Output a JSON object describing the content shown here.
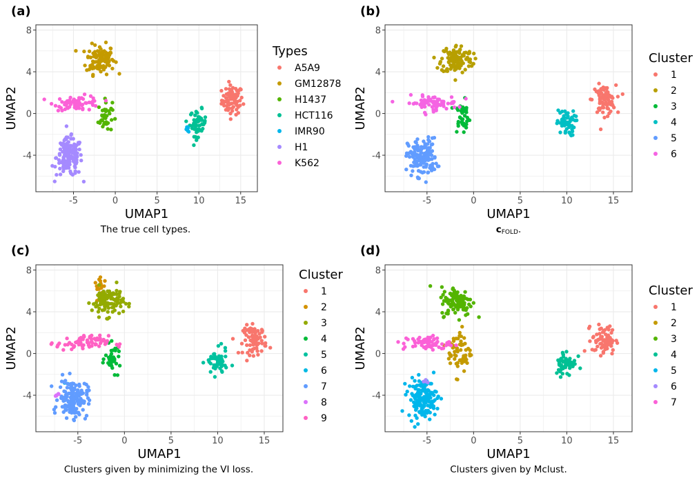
{
  "colors": {
    "c1": "#F8766D",
    "c2": "#C49A00",
    "c3": "#53B400",
    "c4": "#00C094",
    "c5": "#00B6EB",
    "c6": "#A58AFF",
    "c7": "#FB61D7",
    "k1": "#F8766D",
    "k2": "#D39200",
    "k3": "#93AA00",
    "k4": "#00BA38",
    "k5": "#00C19F",
    "k6": "#00B9E3",
    "k7": "#619CFF",
    "k8": "#DB72FB",
    "k9": "#FF61C3",
    "m1": "#F8766D",
    "m2": "#C49A00",
    "m3": "#53B400",
    "m4": "#00C094",
    "m5": "#00B6EB",
    "m6": "#A58AFF",
    "m7": "#FB61D7",
    "b1": "#F8766D",
    "b2": "#B79F00",
    "b3": "#00BA38",
    "b4": "#00BFC4",
    "b5": "#619CFF",
    "b6": "#F564E3",
    "grid": "#ebebeb",
    "border": "#333333"
  },
  "chart_data": [
    {
      "type": "scatter",
      "panel_label": "(a)",
      "caption": "The true cell types.",
      "xlabel": "UMAP1",
      "ylabel": "UMAP2",
      "xlim": [
        -9.5,
        17
      ],
      "ylim": [
        -7.5,
        8.5
      ],
      "xticks": [
        -5,
        0,
        5,
        10,
        15
      ],
      "yticks": [
        -4,
        0,
        4,
        8
      ],
      "grid": true,
      "legend": {
        "title": "Types",
        "position": "right",
        "entries": [
          {
            "label": "A5A9",
            "color_key": "c1"
          },
          {
            "label": "GM12878",
            "color_key": "c2"
          },
          {
            "label": "H1437",
            "color_key": "c3"
          },
          {
            "label": "HCT116",
            "color_key": "c4"
          },
          {
            "label": "IMR90",
            "color_key": "c5"
          },
          {
            "label": "H1",
            "color_key": "c6"
          },
          {
            "label": "K562",
            "color_key": "c7"
          }
        ]
      },
      "series": [
        {
          "name": "A5A9",
          "color_key": "c1",
          "cx": 14,
          "cy": 1.3,
          "sx": 0.9,
          "sy": 1.0,
          "n": 80
        },
        {
          "name": "GM12878",
          "color_key": "c2",
          "cx": -1.8,
          "cy": 5.2,
          "sx": 1.2,
          "sy": 1.0,
          "n": 120
        },
        {
          "name": "H1437",
          "color_key": "c3",
          "cx": -1.2,
          "cy": -0.3,
          "sx": 0.6,
          "sy": 1.1,
          "n": 40
        },
        {
          "name": "HCT116",
          "color_key": "c4",
          "cx": 9.9,
          "cy": -0.9,
          "sx": 0.7,
          "sy": 0.9,
          "n": 50
        },
        {
          "name": "IMR90",
          "color_key": "c5",
          "cx": 8.7,
          "cy": -1.5,
          "sx": 0.2,
          "sy": 0.2,
          "n": 6
        },
        {
          "name": "H1",
          "color_key": "c6",
          "cx": -5.5,
          "cy": -4.2,
          "sx": 1.1,
          "sy": 1.3,
          "n": 150
        },
        {
          "name": "K562",
          "color_key": "c7",
          "cx": -4.5,
          "cy": 1.0,
          "sx": 2.0,
          "sy": 0.5,
          "n": 70
        }
      ]
    },
    {
      "type": "scatter",
      "panel_label": "(b)",
      "caption_main": "c",
      "caption_sub": "FOLD",
      "caption_end": ".",
      "xlabel": "UMAP1",
      "ylabel": "UMAP2",
      "xlim": [
        -9.5,
        17
      ],
      "ylim": [
        -7.5,
        8.5
      ],
      "xticks": [
        -5,
        0,
        5,
        10,
        15
      ],
      "yticks": [
        -4,
        0,
        4,
        8
      ],
      "grid": true,
      "legend": {
        "title": "Cluster",
        "position": "right",
        "entries": [
          {
            "label": "1",
            "color_key": "b1"
          },
          {
            "label": "2",
            "color_key": "b2"
          },
          {
            "label": "3",
            "color_key": "b3"
          },
          {
            "label": "4",
            "color_key": "b4"
          },
          {
            "label": "5",
            "color_key": "b5"
          },
          {
            "label": "6",
            "color_key": "b6"
          }
        ]
      },
      "series": [
        {
          "name": "1",
          "color_key": "b1",
          "cx": 14,
          "cy": 1.3,
          "sx": 0.9,
          "sy": 1.0,
          "n": 80
        },
        {
          "name": "2",
          "color_key": "b2",
          "cx": -1.8,
          "cy": 5.2,
          "sx": 1.2,
          "sy": 1.0,
          "n": 120
        },
        {
          "name": "3",
          "color_key": "b3",
          "cx": -1.2,
          "cy": -0.3,
          "sx": 0.6,
          "sy": 1.1,
          "n": 40
        },
        {
          "name": "4",
          "color_key": "b4",
          "cx": 9.9,
          "cy": -0.9,
          "sx": 0.7,
          "sy": 0.9,
          "n": 55
        },
        {
          "name": "5",
          "color_key": "b5",
          "cx": -5.5,
          "cy": -4.2,
          "sx": 1.1,
          "sy": 1.3,
          "n": 150
        },
        {
          "name": "6",
          "color_key": "b6",
          "cx": -4.5,
          "cy": 1.0,
          "sx": 2.0,
          "sy": 0.5,
          "n": 70
        }
      ]
    },
    {
      "type": "scatter",
      "panel_label": "(c)",
      "caption": "Clusters given by minimizing the VI loss.",
      "xlabel": "UMAP1",
      "ylabel": "UMAP2",
      "xlim": [
        -9.5,
        17
      ],
      "ylim": [
        -7.5,
        8.5
      ],
      "xticks": [
        -5,
        0,
        5,
        10,
        15
      ],
      "yticks": [
        -4,
        0,
        4,
        8
      ],
      "grid": true,
      "legend": {
        "title": "Cluster",
        "position": "right",
        "entries": [
          {
            "label": "1",
            "color_key": "k1"
          },
          {
            "label": "2",
            "color_key": "k2"
          },
          {
            "label": "3",
            "color_key": "k3"
          },
          {
            "label": "4",
            "color_key": "k4"
          },
          {
            "label": "5",
            "color_key": "k5"
          },
          {
            "label": "6",
            "color_key": "k6"
          },
          {
            "label": "7",
            "color_key": "k7"
          },
          {
            "label": "8",
            "color_key": "k8"
          },
          {
            "label": "9",
            "color_key": "k9"
          }
        ]
      },
      "series": [
        {
          "name": "1",
          "color_key": "k1",
          "cx": 14,
          "cy": 1.3,
          "sx": 0.9,
          "sy": 1.0,
          "n": 80
        },
        {
          "name": "2",
          "color_key": "k2",
          "cx": -2.5,
          "cy": 6.3,
          "sx": 0.5,
          "sy": 0.6,
          "n": 20
        },
        {
          "name": "3",
          "color_key": "k3",
          "cx": -1.8,
          "cy": 5.0,
          "sx": 1.2,
          "sy": 1.0,
          "n": 110
        },
        {
          "name": "4",
          "color_key": "k4",
          "cx": -1.2,
          "cy": -0.5,
          "sx": 0.6,
          "sy": 0.9,
          "n": 40
        },
        {
          "name": "5",
          "color_key": "k5",
          "cx": 9.9,
          "cy": -0.9,
          "sx": 0.8,
          "sy": 0.9,
          "n": 55
        },
        {
          "name": "6",
          "color_key": "k6",
          "cx": -6.4,
          "cy": -3.0,
          "sx": 0.3,
          "sy": 0.3,
          "n": 3
        },
        {
          "name": "7",
          "color_key": "k7",
          "cx": -5.5,
          "cy": -4.3,
          "sx": 1.1,
          "sy": 1.3,
          "n": 150
        },
        {
          "name": "8",
          "color_key": "k8",
          "cx": -7.5,
          "cy": -4.2,
          "sx": 0.3,
          "sy": 0.4,
          "n": 5
        },
        {
          "name": "9",
          "color_key": "k9",
          "cx": -4.5,
          "cy": 1.0,
          "sx": 2.0,
          "sy": 0.5,
          "n": 70
        }
      ]
    },
    {
      "type": "scatter",
      "panel_label": "(d)",
      "caption": "Clusters given by Mclust.",
      "xlabel": "UMAP1",
      "ylabel": "UMAP2",
      "xlim": [
        -9.5,
        17
      ],
      "ylim": [
        -7.5,
        8.5
      ],
      "xticks": [
        -5,
        0,
        5,
        10,
        15
      ],
      "yticks": [
        -4,
        0,
        4,
        8
      ],
      "grid": true,
      "legend": {
        "title": "Cluster",
        "position": "right",
        "entries": [
          {
            "label": "1",
            "color_key": "m1"
          },
          {
            "label": "2",
            "color_key": "m2"
          },
          {
            "label": "3",
            "color_key": "m3"
          },
          {
            "label": "4",
            "color_key": "m4"
          },
          {
            "label": "5",
            "color_key": "m5"
          },
          {
            "label": "6",
            "color_key": "m6"
          },
          {
            "label": "7",
            "color_key": "m7"
          }
        ]
      },
      "series": [
        {
          "name": "1",
          "color_key": "m1",
          "cx": 14,
          "cy": 1.3,
          "sx": 0.9,
          "sy": 1.0,
          "n": 80
        },
        {
          "name": "2",
          "color_key": "m2",
          "cx": -1.5,
          "cy": 0.2,
          "sx": 0.9,
          "sy": 1.6,
          "n": 60
        },
        {
          "name": "3",
          "color_key": "m3",
          "cx": -1.8,
          "cy": 5.0,
          "sx": 1.2,
          "sy": 1.0,
          "n": 110
        },
        {
          "name": "4",
          "color_key": "m4",
          "cx": 9.9,
          "cy": -0.9,
          "sx": 0.8,
          "sy": 0.9,
          "n": 55
        },
        {
          "name": "5",
          "color_key": "m5",
          "cx": -5.5,
          "cy": -4.3,
          "sx": 1.1,
          "sy": 1.3,
          "n": 150
        },
        {
          "name": "6",
          "color_key": "m6",
          "cx": -5.0,
          "cy": -2.7,
          "sx": 0.5,
          "sy": 0.2,
          "n": 4
        },
        {
          "name": "7",
          "color_key": "m7",
          "cx": -5.0,
          "cy": 1.0,
          "sx": 1.8,
          "sy": 0.5,
          "n": 60
        }
      ]
    }
  ]
}
